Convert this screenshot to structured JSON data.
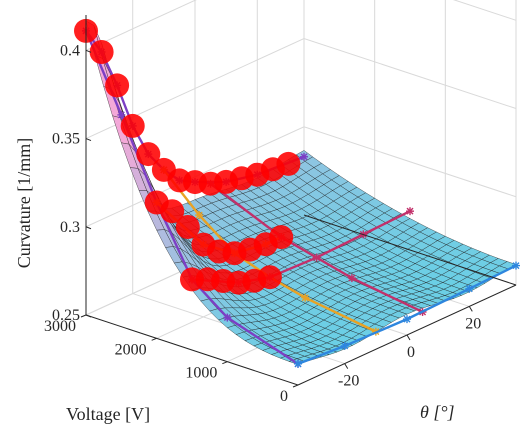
{
  "chart_data": {
    "type": "surface3d",
    "xlabel": "θ [°]",
    "ylabel": "Voltage [V]",
    "zlabel": "Curvature [1/mm]",
    "x_ticks": [
      "-20",
      "0",
      "20"
    ],
    "y_ticks": [
      "0",
      "1000",
      "2000",
      "3000"
    ],
    "z_ticks": [
      "0.25",
      "0.3",
      "0.35",
      "0.4"
    ],
    "xlim": [
      -35,
      35
    ],
    "ylim": [
      0,
      3000
    ],
    "zlim": [
      0.25,
      0.42
    ],
    "grid": true,
    "colors": {
      "surface_low": "#5fd2e6",
      "surface_high": "#f3a8d8",
      "markers": "#ff0000",
      "orange_line": "#e8a225",
      "purple_line": "#7c3fc4",
      "magenta_line": "#c2306a",
      "blue_line": "#2e86de"
    },
    "model": {
      "base_curvature": 0.26,
      "voltage_gain": 0.025,
      "peak_angle": -35,
      "peak_width": 14,
      "peak_height": 0.13
    },
    "red_markers": [
      {
        "theta": -35,
        "voltage": 3000,
        "curvature": 0.411
      },
      {
        "theta": -30,
        "voltage": 3000,
        "curvature": 0.395
      },
      {
        "theta": -25,
        "voltage": 3000,
        "curvature": 0.372
      },
      {
        "theta": -20,
        "voltage": 3000,
        "curvature": 0.345
      },
      {
        "theta": -15,
        "voltage": 3000,
        "curvature": 0.325
      },
      {
        "theta": -10,
        "voltage": 3000,
        "curvature": 0.312
      },
      {
        "theta": -5,
        "voltage": 3000,
        "curvature": 0.302
      },
      {
        "theta": 0,
        "voltage": 3000,
        "curvature": 0.297
      },
      {
        "theta": 5,
        "voltage": 3000,
        "curvature": 0.292
      },
      {
        "theta": 10,
        "voltage": 3000,
        "curvature": 0.289
      },
      {
        "theta": 15,
        "voltage": 3000,
        "curvature": 0.287
      },
      {
        "theta": 20,
        "voltage": 3000,
        "curvature": 0.285
      },
      {
        "theta": 25,
        "voltage": 3000,
        "curvature": 0.284
      },
      {
        "theta": 30,
        "voltage": 3000,
        "curvature": 0.283
      },
      {
        "theta": -35,
        "voltage": 2000,
        "curvature": 0.327
      },
      {
        "theta": -30,
        "voltage": 2000,
        "curvature": 0.318
      },
      {
        "theta": -25,
        "voltage": 2000,
        "curvature": 0.305
      },
      {
        "theta": -20,
        "voltage": 2000,
        "curvature": 0.291
      },
      {
        "theta": -15,
        "voltage": 2000,
        "curvature": 0.283
      },
      {
        "theta": -10,
        "voltage": 2000,
        "curvature": 0.278
      },
      {
        "theta": -5,
        "voltage": 2000,
        "curvature": 0.276
      },
      {
        "theta": 0,
        "voltage": 2000,
        "curvature": 0.275
      },
      {
        "theta": 5,
        "voltage": 2000,
        "curvature": 0.275
      },
      {
        "theta": -35,
        "voltage": 1500,
        "curvature": 0.29
      },
      {
        "theta": -30,
        "voltage": 1500,
        "curvature": 0.286
      },
      {
        "theta": -25,
        "voltage": 1500,
        "curvature": 0.281
      },
      {
        "theta": -20,
        "voltage": 1500,
        "curvature": 0.276
      },
      {
        "theta": -15,
        "voltage": 1500,
        "curvature": 0.273
      },
      {
        "theta": -10,
        "voltage": 1500,
        "curvature": 0.271
      }
    ],
    "series": [
      {
        "color_key": "purple_line",
        "points": [
          {
            "theta": -35,
            "voltage": 3000,
            "curvature": 0.411
          },
          {
            "theta": -30,
            "voltage": 3000,
            "curvature": 0.395
          },
          {
            "theta": -25,
            "voltage": 3000,
            "curvature": 0.372
          },
          {
            "theta": -20,
            "voltage": 3000,
            "curvature": 0.345
          },
          {
            "theta": -15,
            "voltage": 3000,
            "curvature": 0.325
          },
          {
            "theta": -10,
            "voltage": 3000,
            "curvature": 0.312
          },
          {
            "theta": -5,
            "voltage": 3000,
            "curvature": 0.302
          },
          {
            "theta": 0,
            "voltage": 3000,
            "curvature": 0.297
          },
          {
            "theta": 10,
            "voltage": 3000,
            "curvature": 0.289
          },
          {
            "theta": 20,
            "voltage": 3000,
            "curvature": 0.285
          },
          {
            "theta": 35,
            "voltage": 3000,
            "curvature": 0.283
          }
        ]
      },
      {
        "color_key": "purple_line",
        "points": [
          {
            "theta": -35,
            "voltage": 0,
            "curvature": 0.262
          },
          {
            "theta": -35,
            "voltage": 1000,
            "curvature": 0.275
          },
          {
            "theta": -35,
            "voltage": 1500,
            "curvature": 0.29
          },
          {
            "theta": -35,
            "voltage": 2000,
            "curvature": 0.327
          },
          {
            "theta": -35,
            "voltage": 2500,
            "curvature": 0.37
          },
          {
            "theta": -35,
            "voltage": 3000,
            "curvature": 0.411
          }
        ]
      },
      {
        "color_key": "orange_line",
        "points": [
          {
            "theta": -10,
            "voltage": 0,
            "curvature": 0.26
          },
          {
            "theta": -10,
            "voltage": 1000,
            "curvature": 0.266
          },
          {
            "theta": -10,
            "voltage": 1500,
            "curvature": 0.271
          },
          {
            "theta": -10,
            "voltage": 2000,
            "curvature": 0.278
          },
          {
            "theta": -10,
            "voltage": 2500,
            "curvature": 0.293
          },
          {
            "theta": -10,
            "voltage": 3000,
            "curvature": 0.312
          }
        ]
      },
      {
        "color_key": "orange_line",
        "points": [
          {
            "theta": -35,
            "voltage": 2000,
            "curvature": 0.327
          },
          {
            "theta": -20,
            "voltage": 2000,
            "curvature": 0.291
          },
          {
            "theta": -10,
            "voltage": 2000,
            "curvature": 0.278
          },
          {
            "theta": 0,
            "voltage": 2000,
            "curvature": 0.275
          },
          {
            "theta": 5,
            "voltage": 2000,
            "curvature": 0.275
          }
        ]
      },
      {
        "color_key": "magenta_line",
        "points": [
          {
            "theta": 5,
            "voltage": 0,
            "curvature": 0.259
          },
          {
            "theta": 5,
            "voltage": 1000,
            "curvature": 0.265
          },
          {
            "theta": 5,
            "voltage": 2000,
            "curvature": 0.275
          },
          {
            "theta": 5,
            "voltage": 3000,
            "curvature": 0.292
          }
        ]
      },
      {
        "color_key": "magenta_line",
        "points": [
          {
            "theta": -35,
            "voltage": 1500,
            "curvature": 0.29
          },
          {
            "theta": -20,
            "voltage": 1500,
            "curvature": 0.276
          },
          {
            "theta": -10,
            "voltage": 1500,
            "curvature": 0.271
          },
          {
            "theta": 5,
            "voltage": 1500,
            "curvature": 0.27
          },
          {
            "theta": 20,
            "voltage": 1500,
            "curvature": 0.271
          },
          {
            "theta": 35,
            "voltage": 1500,
            "curvature": 0.272
          }
        ]
      },
      {
        "color_key": "blue_line",
        "points": [
          {
            "theta": -35,
            "voltage": 0,
            "curvature": 0.262
          },
          {
            "theta": -20,
            "voltage": 0,
            "curvature": 0.26
          },
          {
            "theta": 0,
            "voltage": 0,
            "curvature": 0.259
          },
          {
            "theta": 20,
            "voltage": 0,
            "curvature": 0.26
          },
          {
            "theta": 35,
            "voltage": 0,
            "curvature": 0.261
          }
        ]
      }
    ]
  }
}
